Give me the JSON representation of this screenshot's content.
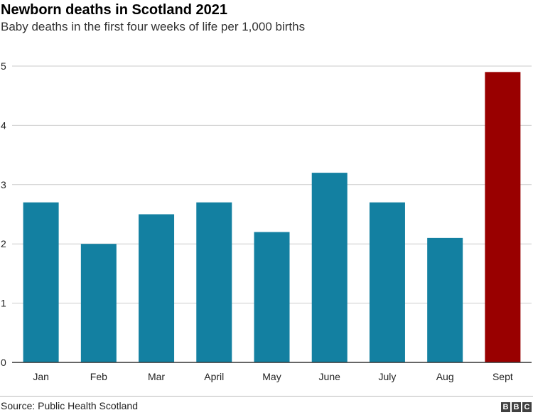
{
  "header": {
    "title": "Newborn deaths in Scotland 2021",
    "subtitle": "Baby deaths in the first four weeks of life per 1,000 births"
  },
  "footer": {
    "source": "Source: Public Health Scotland",
    "logo_letters": [
      "B",
      "B",
      "C"
    ]
  },
  "colors": {
    "bar_default": "#1380a1",
    "bar_highlight": "#990000",
    "gridline": "#cbcbcb",
    "baseline": "#333333"
  },
  "chart_data": {
    "type": "bar",
    "categories": [
      "Jan",
      "Feb",
      "Mar",
      "April",
      "May",
      "June",
      "July",
      "Aug",
      "Sept"
    ],
    "values": [
      2.7,
      2.0,
      2.5,
      2.7,
      2.2,
      3.2,
      2.7,
      2.1,
      4.9
    ],
    "highlight_index": 8,
    "ylim": [
      0,
      5
    ],
    "yticks": [
      0,
      1,
      2,
      3,
      4,
      5
    ],
    "grid": true,
    "title": "Newborn deaths in Scotland 2021",
    "subtitle": "Baby deaths in the first four weeks of life per 1,000 births",
    "xlabel": "",
    "ylabel": ""
  }
}
